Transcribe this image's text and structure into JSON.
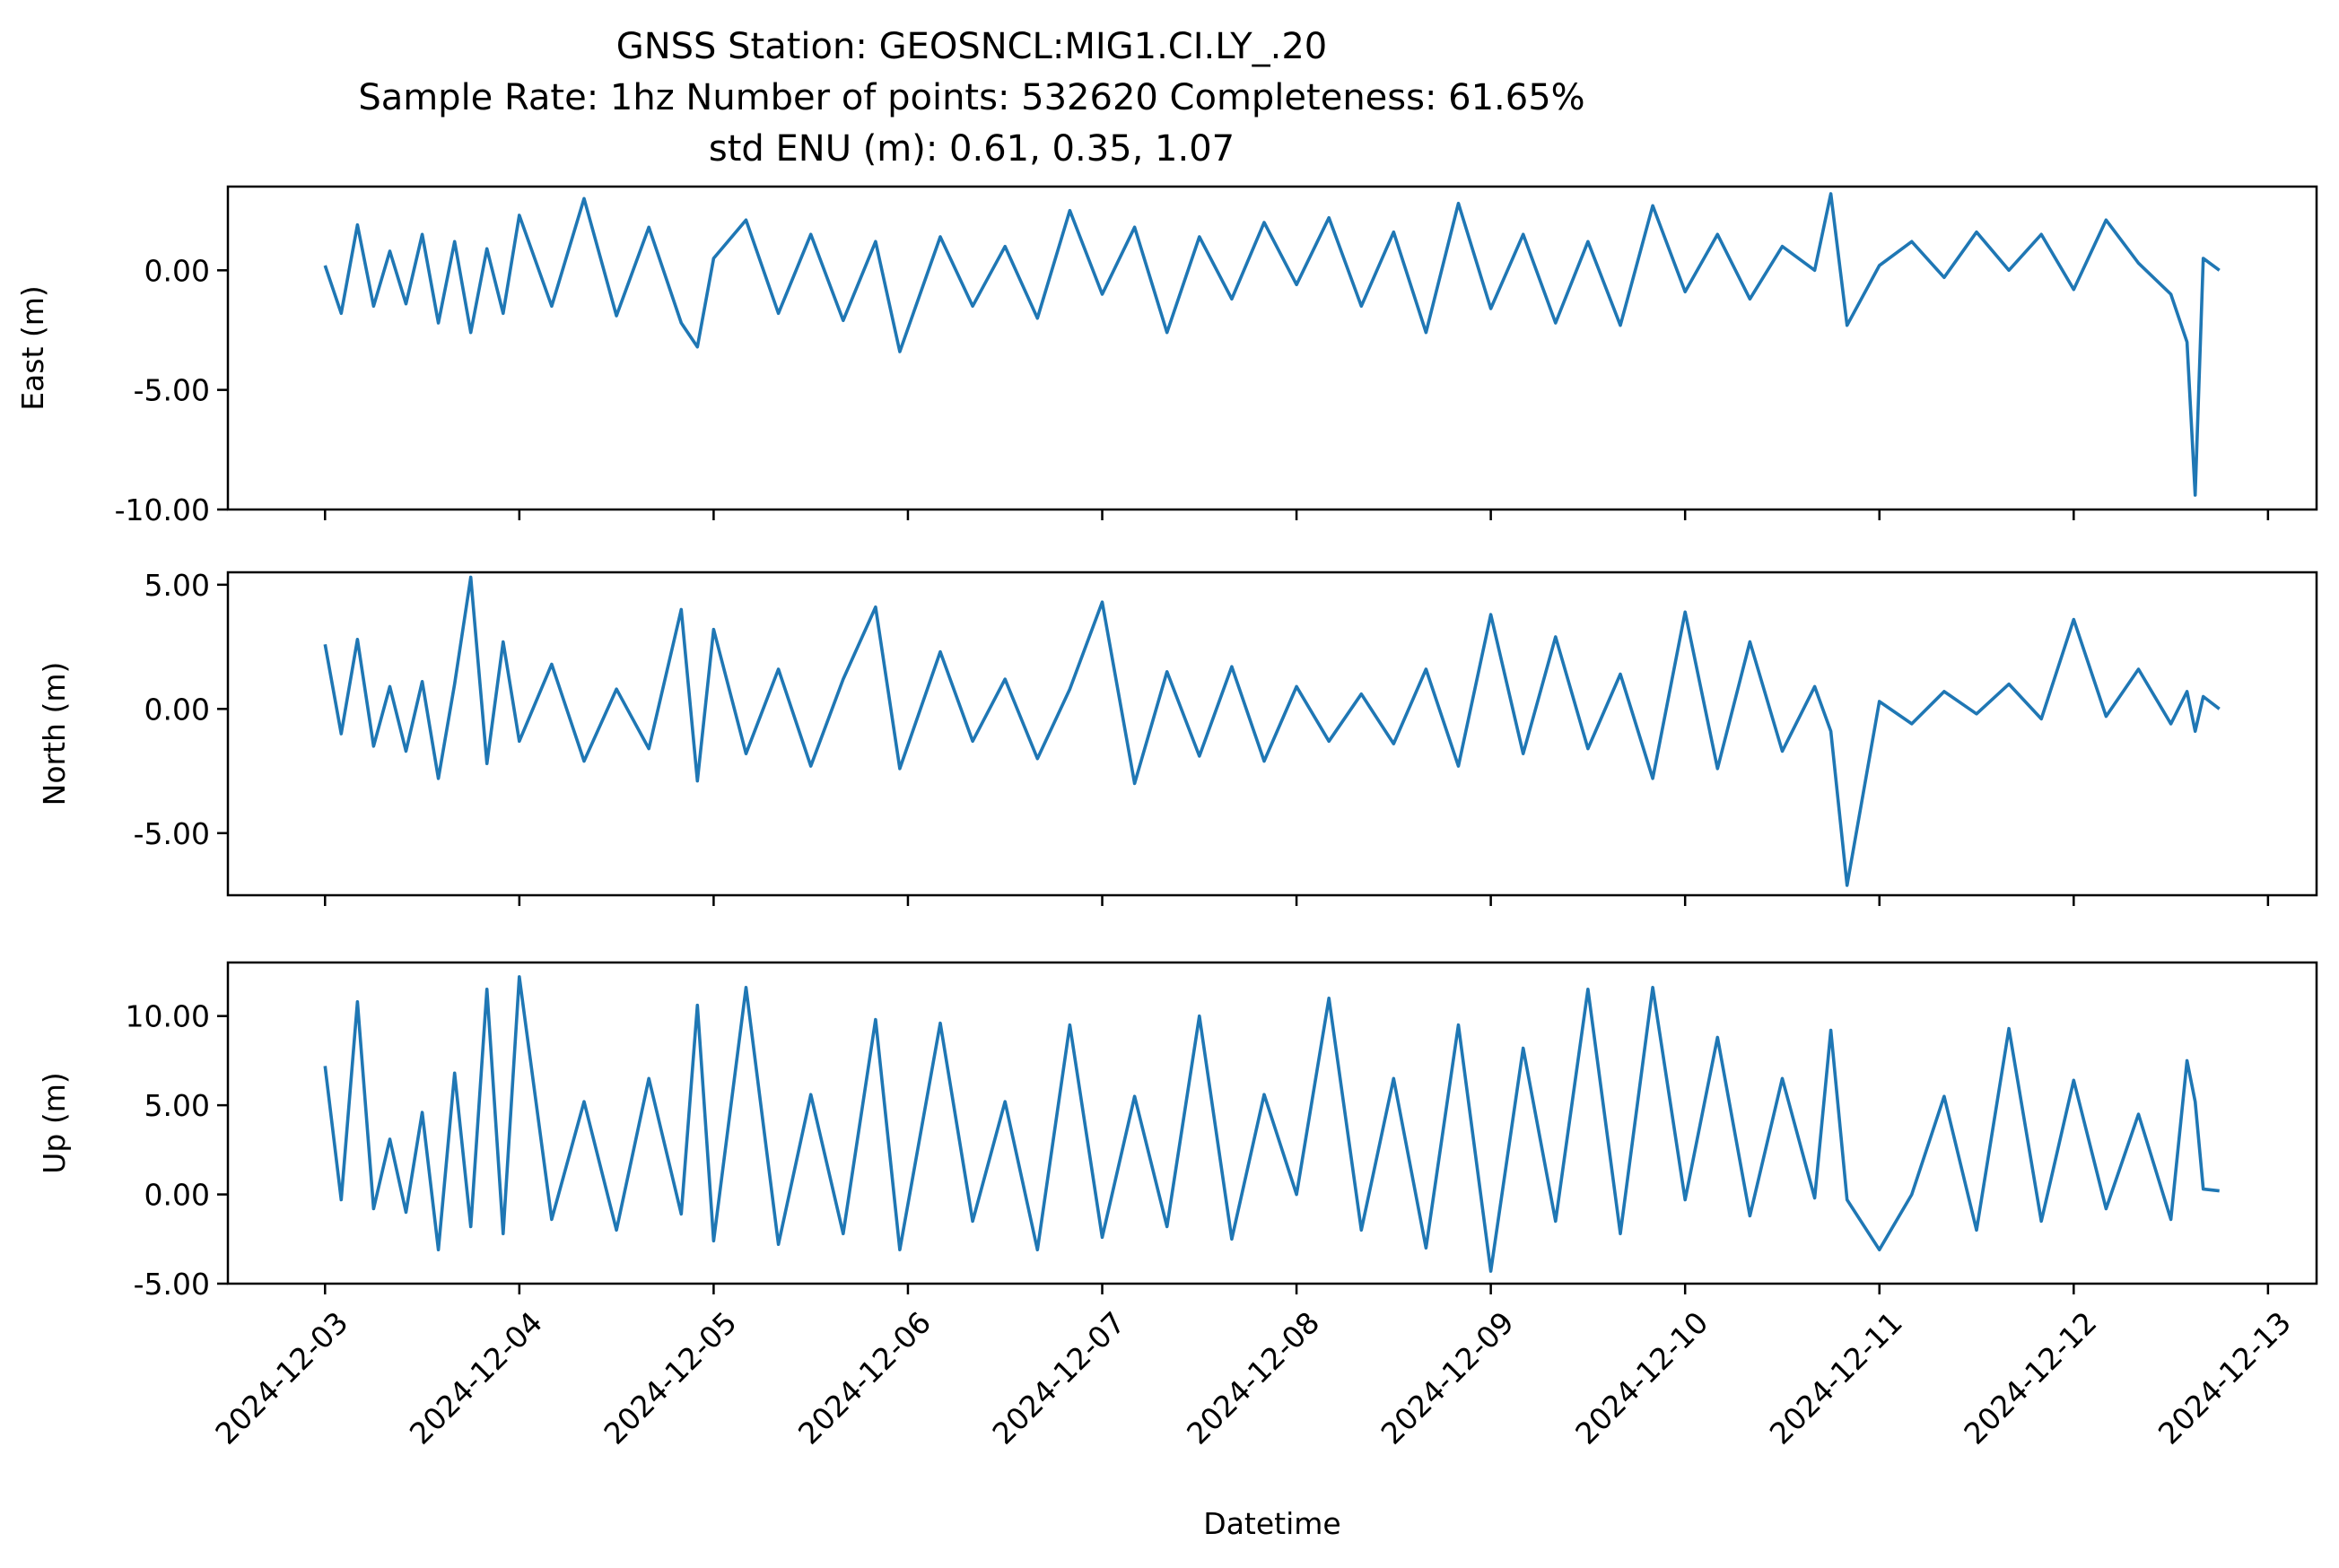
{
  "title_lines": [
    "GNSS Station: GEOSNCL:MIG1.CI.LY_.20",
    "Sample Rate: 1hz   Number of points: 532620    Completeness:  61.65%",
    "std ENU (m):  0.61, 0.35, 1.07"
  ],
  "colors": {
    "series": "#1f77b4",
    "axes": "#000000",
    "background": "#ffffff"
  },
  "chart_data": [
    {
      "type": "line",
      "ylabel": "East (m)",
      "xlabel": "",
      "xlim": [
        "2024-12-02T12:00",
        "2024-12-13T06:00"
      ],
      "ylim": [
        -10.0,
        3.5
      ],
      "yticks": [
        0.0,
        -5.0,
        -10.0
      ],
      "ytick_labels": [
        "0.00",
        "-5.00",
        "-10.00"
      ],
      "show_xtick_labels": false,
      "grid": false,
      "x": [
        "2024-12-03T00:00",
        "2024-12-03T02:00",
        "2024-12-03T04:00",
        "2024-12-03T06:00",
        "2024-12-03T08:00",
        "2024-12-03T10:00",
        "2024-12-03T12:00",
        "2024-12-03T14:00",
        "2024-12-03T16:00",
        "2024-12-03T18:00",
        "2024-12-03T20:00",
        "2024-12-03T22:00",
        "2024-12-04T00:00",
        "2024-12-04T04:00",
        "2024-12-04T08:00",
        "2024-12-04T12:00",
        "2024-12-04T16:00",
        "2024-12-04T20:00",
        "2024-12-04T22:00",
        "2024-12-05T00:00",
        "2024-12-05T04:00",
        "2024-12-05T08:00",
        "2024-12-05T12:00",
        "2024-12-05T16:00",
        "2024-12-05T20:00",
        "2024-12-05T23:00",
        "2024-12-06T04:00",
        "2024-12-06T08:00",
        "2024-12-06T12:00",
        "2024-12-06T16:00",
        "2024-12-06T20:00",
        "2024-12-07T00:00",
        "2024-12-07T04:00",
        "2024-12-07T08:00",
        "2024-12-07T12:00",
        "2024-12-07T16:00",
        "2024-12-07T20:00",
        "2024-12-08T00:00",
        "2024-12-08T04:00",
        "2024-12-08T08:00",
        "2024-12-08T12:00",
        "2024-12-08T16:00",
        "2024-12-08T20:00",
        "2024-12-09T00:00",
        "2024-12-09T04:00",
        "2024-12-09T08:00",
        "2024-12-09T12:00",
        "2024-12-09T16:00",
        "2024-12-09T20:00",
        "2024-12-10T00:00",
        "2024-12-10T04:00",
        "2024-12-10T08:00",
        "2024-12-10T12:00",
        "2024-12-10T16:00",
        "2024-12-10T18:00",
        "2024-12-10T20:00",
        "2024-12-11T00:00",
        "2024-12-11T04:00",
        "2024-12-11T08:00",
        "2024-12-11T12:00",
        "2024-12-11T16:00",
        "2024-12-11T20:00",
        "2024-12-12T00:00",
        "2024-12-12T04:00",
        "2024-12-12T08:00",
        "2024-12-12T12:00",
        "2024-12-12T14:00",
        "2024-12-12T15:00",
        "2024-12-12T16:00",
        "2024-12-12T18:00"
      ],
      "y": [
        0.2,
        -1.8,
        1.9,
        -1.5,
        0.8,
        -1.4,
        1.5,
        -2.2,
        1.2,
        -2.6,
        0.9,
        -1.8,
        2.3,
        -1.5,
        3.0,
        -1.9,
        1.8,
        -2.2,
        -3.2,
        0.5,
        2.1,
        -1.8,
        1.5,
        -2.1,
        1.2,
        -3.4,
        1.4,
        -1.5,
        1.0,
        -2.0,
        2.5,
        -1.0,
        1.8,
        -2.6,
        1.4,
        -1.2,
        2.0,
        -0.6,
        2.2,
        -1.5,
        1.6,
        -2.6,
        2.8,
        -1.6,
        1.5,
        -2.2,
        1.2,
        -2.3,
        2.7,
        -0.9,
        1.5,
        -1.2,
        1.0,
        0.0,
        3.2,
        -2.3,
        0.2,
        1.2,
        -0.3,
        1.6,
        0.0,
        1.5,
        -0.8,
        2.1,
        0.3,
        -1.0,
        -3.0,
        -9.4,
        0.5,
        0.0
      ]
    },
    {
      "type": "line",
      "ylabel": "North (m)",
      "xlabel": "",
      "xlim": [
        "2024-12-02T12:00",
        "2024-12-13T06:00"
      ],
      "ylim": [
        -7.5,
        5.5
      ],
      "yticks": [
        5.0,
        0.0,
        -5.0
      ],
      "ytick_labels": [
        "5.00",
        "0.00",
        "-5.00"
      ],
      "show_xtick_labels": false,
      "grid": false,
      "x": [
        "2024-12-03T00:00",
        "2024-12-03T02:00",
        "2024-12-03T04:00",
        "2024-12-03T06:00",
        "2024-12-03T08:00",
        "2024-12-03T10:00",
        "2024-12-03T12:00",
        "2024-12-03T14:00",
        "2024-12-03T16:00",
        "2024-12-03T18:00",
        "2024-12-03T20:00",
        "2024-12-03T22:00",
        "2024-12-04T00:00",
        "2024-12-04T04:00",
        "2024-12-04T08:00",
        "2024-12-04T12:00",
        "2024-12-04T16:00",
        "2024-12-04T20:00",
        "2024-12-04T22:00",
        "2024-12-05T00:00",
        "2024-12-05T04:00",
        "2024-12-05T08:00",
        "2024-12-05T12:00",
        "2024-12-05T16:00",
        "2024-12-05T20:00",
        "2024-12-05T23:00",
        "2024-12-06T04:00",
        "2024-12-06T08:00",
        "2024-12-06T12:00",
        "2024-12-06T16:00",
        "2024-12-06T20:00",
        "2024-12-07T00:00",
        "2024-12-07T04:00",
        "2024-12-07T08:00",
        "2024-12-07T12:00",
        "2024-12-07T16:00",
        "2024-12-07T20:00",
        "2024-12-08T00:00",
        "2024-12-08T04:00",
        "2024-12-08T08:00",
        "2024-12-08T12:00",
        "2024-12-08T16:00",
        "2024-12-08T20:00",
        "2024-12-09T00:00",
        "2024-12-09T04:00",
        "2024-12-09T08:00",
        "2024-12-09T12:00",
        "2024-12-09T16:00",
        "2024-12-09T20:00",
        "2024-12-10T00:00",
        "2024-12-10T04:00",
        "2024-12-10T08:00",
        "2024-12-10T12:00",
        "2024-12-10T16:00",
        "2024-12-10T18:00",
        "2024-12-10T20:00",
        "2024-12-11T00:00",
        "2024-12-11T04:00",
        "2024-12-11T08:00",
        "2024-12-11T12:00",
        "2024-12-11T16:00",
        "2024-12-11T20:00",
        "2024-12-12T00:00",
        "2024-12-12T04:00",
        "2024-12-12T08:00",
        "2024-12-12T12:00",
        "2024-12-12T14:00",
        "2024-12-12T15:00",
        "2024-12-12T16:00",
        "2024-12-12T18:00"
      ],
      "y": [
        2.6,
        -1.0,
        2.8,
        -1.5,
        0.9,
        -1.7,
        1.1,
        -2.8,
        1.0,
        5.3,
        -2.2,
        2.7,
        -1.3,
        1.8,
        -2.1,
        0.8,
        -1.6,
        4.0,
        -2.9,
        3.2,
        -1.8,
        1.6,
        -2.3,
        1.2,
        4.1,
        -2.4,
        2.3,
        -1.3,
        1.2,
        -2.0,
        0.8,
        4.3,
        -3.0,
        1.5,
        -1.9,
        1.7,
        -2.1,
        0.9,
        -1.3,
        0.6,
        -1.4,
        1.6,
        -2.3,
        3.8,
        -1.8,
        2.9,
        -1.6,
        1.4,
        -2.8,
        3.9,
        -2.4,
        2.7,
        -1.7,
        0.9,
        -0.9,
        -7.1,
        0.3,
        -0.6,
        0.7,
        -0.2,
        1.0,
        -0.4,
        3.6,
        -0.3,
        1.6,
        -0.6,
        0.7,
        -0.9,
        0.5,
        0.0
      ]
    },
    {
      "type": "line",
      "ylabel": "Up (m)",
      "xlabel": "Datetime",
      "xlim": [
        "2024-12-02T12:00",
        "2024-12-13T06:00"
      ],
      "ylim": [
        -5.0,
        13.0
      ],
      "yticks": [
        10.0,
        5.0,
        0.0,
        -5.0
      ],
      "ytick_labels": [
        "10.00",
        "5.00",
        "0.00",
        "-5.00"
      ],
      "xticks": [
        "2024-12-03",
        "2024-12-04",
        "2024-12-05",
        "2024-12-06",
        "2024-12-07",
        "2024-12-08",
        "2024-12-09",
        "2024-12-10",
        "2024-12-11",
        "2024-12-12",
        "2024-12-13"
      ],
      "xtick_labels": [
        "2024-12-03",
        "2024-12-04",
        "2024-12-05",
        "2024-12-06",
        "2024-12-07",
        "2024-12-08",
        "2024-12-09",
        "2024-12-10",
        "2024-12-11",
        "2024-12-12",
        "2024-12-13"
      ],
      "show_xtick_labels": true,
      "grid": false,
      "x": [
        "2024-12-03T00:00",
        "2024-12-03T02:00",
        "2024-12-03T04:00",
        "2024-12-03T06:00",
        "2024-12-03T08:00",
        "2024-12-03T10:00",
        "2024-12-03T12:00",
        "2024-12-03T14:00",
        "2024-12-03T16:00",
        "2024-12-03T18:00",
        "2024-12-03T20:00",
        "2024-12-03T22:00",
        "2024-12-04T00:00",
        "2024-12-04T04:00",
        "2024-12-04T08:00",
        "2024-12-04T12:00",
        "2024-12-04T16:00",
        "2024-12-04T20:00",
        "2024-12-04T22:00",
        "2024-12-05T00:00",
        "2024-12-05T04:00",
        "2024-12-05T08:00",
        "2024-12-05T12:00",
        "2024-12-05T16:00",
        "2024-12-05T20:00",
        "2024-12-05T23:00",
        "2024-12-06T04:00",
        "2024-12-06T08:00",
        "2024-12-06T12:00",
        "2024-12-06T16:00",
        "2024-12-06T20:00",
        "2024-12-07T00:00",
        "2024-12-07T04:00",
        "2024-12-07T08:00",
        "2024-12-07T12:00",
        "2024-12-07T16:00",
        "2024-12-07T20:00",
        "2024-12-08T00:00",
        "2024-12-08T04:00",
        "2024-12-08T08:00",
        "2024-12-08T12:00",
        "2024-12-08T16:00",
        "2024-12-08T20:00",
        "2024-12-09T00:00",
        "2024-12-09T04:00",
        "2024-12-09T08:00",
        "2024-12-09T12:00",
        "2024-12-09T16:00",
        "2024-12-09T20:00",
        "2024-12-10T00:00",
        "2024-12-10T04:00",
        "2024-12-10T08:00",
        "2024-12-10T12:00",
        "2024-12-10T16:00",
        "2024-12-10T18:00",
        "2024-12-10T20:00",
        "2024-12-11T00:00",
        "2024-12-11T04:00",
        "2024-12-11T08:00",
        "2024-12-11T12:00",
        "2024-12-11T16:00",
        "2024-12-11T20:00",
        "2024-12-12T00:00",
        "2024-12-12T04:00",
        "2024-12-12T08:00",
        "2024-12-12T12:00",
        "2024-12-12T14:00",
        "2024-12-12T15:00",
        "2024-12-12T16:00",
        "2024-12-12T18:00"
      ],
      "y": [
        7.2,
        -0.3,
        10.8,
        -0.8,
        3.1,
        -1.0,
        4.6,
        -3.1,
        6.8,
        -1.8,
        11.5,
        -2.2,
        12.2,
        -1.4,
        5.2,
        -2.0,
        6.5,
        -1.1,
        10.6,
        -2.6,
        11.6,
        -2.8,
        5.6,
        -2.2,
        9.8,
        -3.1,
        9.6,
        -1.5,
        5.2,
        -3.1,
        9.5,
        -2.4,
        5.5,
        -1.8,
        10.0,
        -2.5,
        5.6,
        0.0,
        11.0,
        -2.0,
        6.5,
        -3.0,
        9.5,
        -4.3,
        8.2,
        -1.5,
        11.5,
        -2.2,
        11.6,
        -0.3,
        8.8,
        -1.2,
        6.5,
        -0.2,
        9.2,
        -0.3,
        -3.1,
        0.0,
        5.5,
        -2.0,
        9.3,
        -1.5,
        6.4,
        -0.8,
        4.5,
        -1.4,
        7.5,
        5.2,
        0.3,
        0.2
      ]
    }
  ]
}
